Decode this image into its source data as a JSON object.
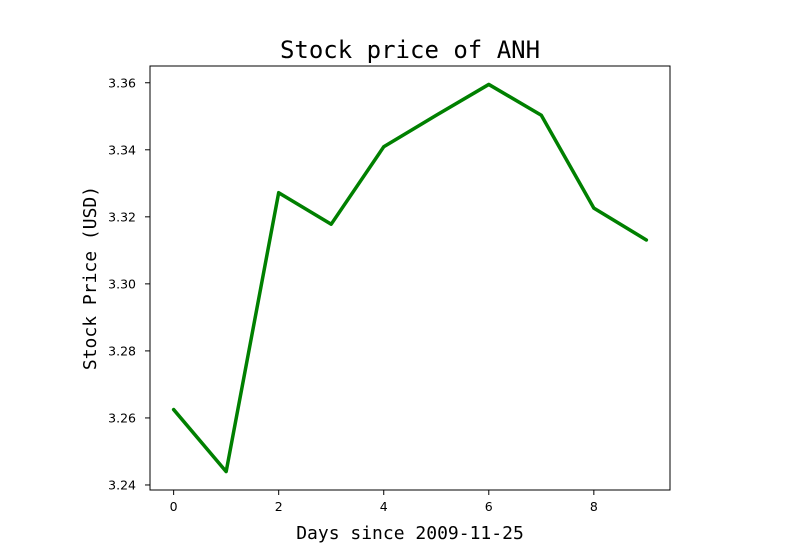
{
  "chart_data": {
    "type": "line",
    "title": "Stock price of ANH",
    "xlabel": "Days since 2009-11-25",
    "ylabel": "Stock Price (USD)",
    "x": [
      0,
      1,
      2,
      3,
      4,
      5,
      6,
      7,
      8,
      9
    ],
    "series": [
      {
        "values": [
          3.2625,
          3.244,
          3.3272,
          3.3178,
          3.3409,
          3.3503,
          3.3595,
          3.3503,
          3.3226,
          3.3131
        ],
        "color": "#008000"
      }
    ],
    "xlim": [
      -0.45,
      9.45
    ],
    "ylim": [
      3.2385,
      3.365
    ],
    "xticks": [
      0,
      2,
      4,
      6,
      8
    ],
    "xtick_labels": [
      "0",
      "2",
      "4",
      "6",
      "8"
    ],
    "yticks": [
      3.24,
      3.26,
      3.28,
      3.3,
      3.32,
      3.34,
      3.36
    ],
    "ytick_labels": [
      "3.24",
      "3.26",
      "3.28",
      "3.30",
      "3.32",
      "3.34",
      "3.36"
    ],
    "grid": false,
    "legend": false
  }
}
